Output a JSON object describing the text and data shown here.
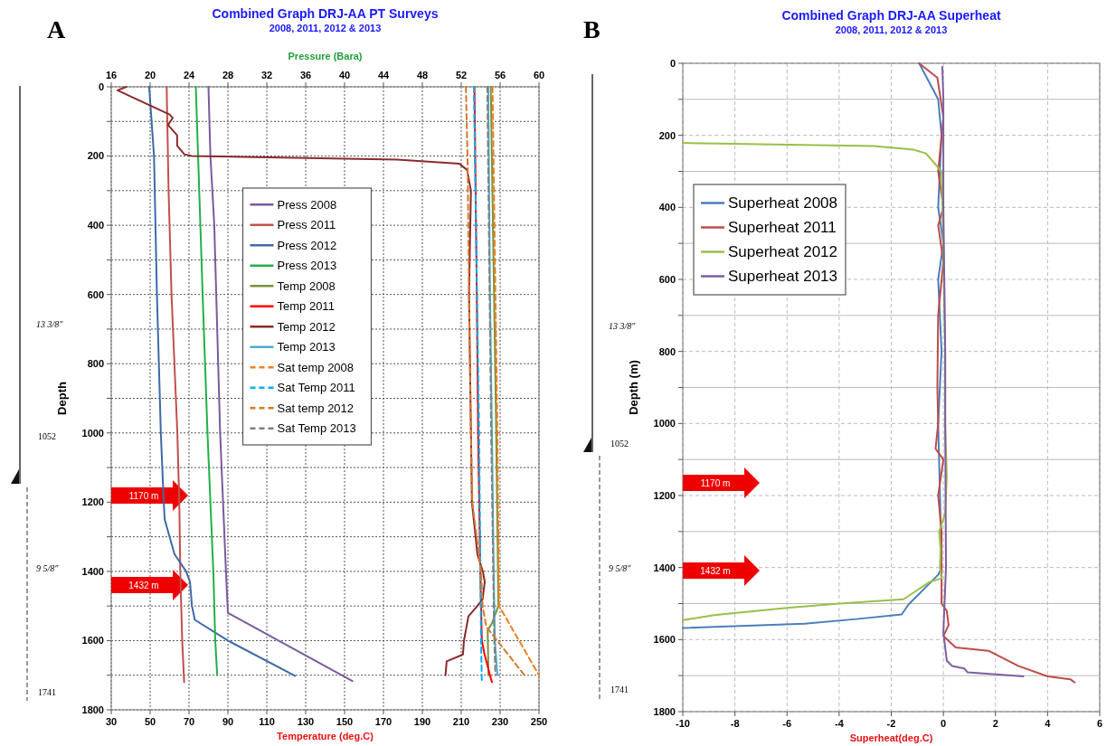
{
  "chart_data": [
    {
      "type": "line",
      "title": "Combined Graph DRJ-AA PT Surveys",
      "subtitle": "2008, 2011, 2012 & 2013",
      "xlabel": "Temperature (deg.C)",
      "x2label": "Pressure (Bara)",
      "ylabel": "Depth",
      "xlim": [
        30,
        250
      ],
      "xticks": [
        30,
        50,
        70,
        90,
        110,
        130,
        150,
        170,
        190,
        210,
        230,
        250
      ],
      "x2lim": [
        16,
        60
      ],
      "x2ticks": [
        16,
        20,
        24,
        28,
        32,
        36,
        40,
        44,
        48,
        52,
        56,
        60
      ],
      "ylim": [
        1800,
        0
      ],
      "yticks": [
        0,
        {
          "value": 100,
          "label": null
        },
        200,
        {
          "value": 300,
          "label": null
        },
        400,
        {
          "value": 500,
          "label": null
        },
        600,
        {
          "value": 700,
          "label": null
        },
        800,
        {
          "value": 900,
          "label": null
        },
        1000,
        {
          "value": 1100,
          "label": null
        },
        1200,
        {
          "value": 1300,
          "label": null
        },
        1400,
        {
          "value": 1500,
          "label": null
        },
        1600,
        {
          "value": 1700,
          "label": null
        },
        1800
      ],
      "grid": true,
      "legend": "top",
      "line_style": "solid",
      "annotations": [
        "A",
        "13 3/8\"",
        "1052",
        "9 5/8\"",
        "1741",
        "1170 m",
        "1432 m"
      ],
      "series": [
        {
          "name": "Press 2008",
          "color": "#7a5a9e",
          "axis": "x2",
          "x": [
            26.0,
            26.2,
            26.6,
            26.8,
            27.0,
            27.2,
            27.5,
            27.8,
            28.0,
            40.8
          ],
          "values": [
            0,
            200,
            400,
            600,
            800,
            1000,
            1200,
            1400,
            1520,
            1717
          ]
        },
        {
          "name": "Press 2011",
          "color": "#c0504d",
          "axis": "x2",
          "x": [
            21.7,
            21.9,
            22.2,
            22.5,
            22.8,
            23.0,
            23.1,
            23.3,
            23.5
          ],
          "values": [
            0,
            300,
            600,
            800,
            1000,
            1200,
            1400,
            1600,
            1720
          ]
        },
        {
          "name": "Press 2012",
          "color": "#3e6aa8",
          "axis": "x2",
          "x": [
            19.9,
            20.4,
            20.7,
            21.1,
            21.4,
            21.5,
            22.5,
            23.7,
            24.1,
            24.3,
            24.6,
            28.0,
            34.9
          ],
          "values": [
            0,
            200,
            600,
            1000,
            1200,
            1250,
            1350,
            1400,
            1430,
            1500,
            1540,
            1600,
            1702
          ]
        },
        {
          "name": "Press 2013",
          "color": "#22b04a",
          "axis": "x2",
          "x": [
            24.7,
            25.4,
            25.9,
            26.2,
            26.5,
            26.7,
            26.9
          ],
          "values": [
            0,
            600,
            1000,
            1200,
            1400,
            1600,
            1700
          ]
        },
        {
          "name": "Temp 2008",
          "color": "#77933c",
          "x": [
            225.2,
            228.0,
            229.1,
            225.8,
            223.6,
            224.0
          ],
          "values": [
            0,
            1000,
            1500,
            1550,
            1570,
            1700
          ]
        },
        {
          "name": "Temp 2011",
          "color": "#ff0000",
          "x": [
            216.8,
            218.0,
            218.7,
            219.8,
            220.6,
            222.0,
            224.8,
            225.8
          ],
          "values": [
            0,
            600,
            1000,
            1400,
            1600,
            1640,
            1700,
            1720
          ]
        },
        {
          "name": "Temp 2012",
          "color": "#8b2a2a",
          "x": [
            37.8,
            33.2,
            60.0,
            61.6,
            59.2,
            63.9,
            63.9,
            67.6,
            71.3,
            177,
            209,
            213,
            215,
            214.0,
            215.0,
            215.5,
            218.3,
            221.1,
            222.1,
            221.0,
            218.3,
            213.7,
            211.4,
            210.9,
            202.5,
            201.9
          ],
          "values": [
            0,
            10,
            80,
            90,
            110,
            140,
            170,
            195,
            200,
            210,
            222,
            240,
            300,
            600,
            1000,
            1200,
            1350,
            1400,
            1430,
            1480,
            1500,
            1530,
            1600,
            1640,
            1660,
            1700
          ]
        },
        {
          "name": "Temp 2013",
          "color": "#4bacc6",
          "x": [
            223.9,
            224.8,
            225.8,
            226.7,
            227.3,
            228.6
          ],
          "values": [
            0,
            600,
            1000,
            1400,
            1600,
            1700
          ]
        },
        {
          "name": "Sat temp 2008",
          "color": "#f07f1f",
          "line_style": "dashed",
          "x": [
            226.1,
            228.6,
            229.5,
            250
          ],
          "values": [
            0,
            1000,
            1500,
            1700
          ]
        },
        {
          "name": "Sat Temp 2011",
          "color": "#00b0f0",
          "line_style": "dashed",
          "x": [
            216.5,
            219.2,
            220.2,
            220.6
          ],
          "values": [
            0,
            1000,
            1600,
            1720
          ]
        },
        {
          "name": "Sat temp 2012",
          "color": "#d27a2e",
          "line_style": "dashed",
          "x": [
            212.4,
            213.3,
            214.0,
            215.0,
            215.7,
            220.2,
            221.0,
            222.9,
            242.5
          ],
          "values": [
            0,
            220,
            600,
            1000,
            1200,
            1400,
            1500,
            1560,
            1700
          ]
        },
        {
          "name": "Sat Temp 2013",
          "color": "#808080",
          "line_style": "dashed",
          "x": [
            223.4,
            225.4,
            227.0,
            227.6
          ],
          "values": [
            0,
            1000,
            1600,
            1700
          ]
        }
      ]
    },
    {
      "type": "line",
      "title": "Combined Graph DRJ-AA Superheat",
      "subtitle": "2008, 2011, 2012 & 2013",
      "xlabel": "Superheat(deg.C)",
      "ylabel": "Depth (m)",
      "xlim": [
        -10,
        6
      ],
      "xticks": [
        -10,
        -8,
        -6,
        -4,
        -2,
        0,
        2,
        4,
        6
      ],
      "ylim": [
        1800,
        0
      ],
      "yticks": [
        0,
        {
          "value": 100,
          "label": null
        },
        200,
        {
          "value": 300,
          "label": null
        },
        400,
        {
          "value": 500,
          "label": null
        },
        600,
        {
          "value": 700,
          "label": null
        },
        800,
        {
          "value": 900,
          "label": null
        },
        1000,
        {
          "value": 1100,
          "label": null
        },
        1200,
        {
          "value": 1300,
          "label": null
        },
        1400,
        {
          "value": 1500,
          "label": null
        },
        1600,
        {
          "value": 1700,
          "label": null
        },
        1800
      ],
      "grid": true,
      "legend": "top left",
      "line_style": "solid",
      "annotations": [
        "B",
        "13 3/8\"",
        "1052",
        "9 5/8\"",
        "1741",
        "1170 m",
        "1432 m"
      ],
      "series": [
        {
          "name": "Superheat 2008",
          "color": "#4a7ebb",
          "x": [
            -0.93,
            -0.2,
            -0.07,
            -0.2,
            0,
            -0.2,
            -0.07,
            -0.2,
            -0.13,
            -0.07,
            -0.2,
            -1.33,
            -1.6,
            -3.33,
            -5.33,
            -10
          ],
          "values": [
            0,
            100,
            200,
            400,
            500,
            600,
            800,
            1000,
            1200,
            1400,
            1420,
            1502,
            1530,
            1543,
            1556,
            1568
          ]
        },
        {
          "name": "Superheat 2011",
          "color": "#be4b48",
          "x": [
            -0.93,
            -0.23,
            0,
            -0.2,
            0,
            -0.2,
            0,
            -0.2,
            -0.23,
            -0.2,
            -0.3,
            0,
            -0.2,
            -0.07,
            -0.07,
            0.13,
            0.2,
            0,
            0.47,
            1.73,
            2.87,
            4.0,
            4.87,
            5.04
          ],
          "values": [
            0,
            40,
            150,
            300,
            400,
            450,
            550,
            700,
            900,
            1000,
            1070,
            1100,
            1200,
            1300,
            1500,
            1520,
            1560,
            1590,
            1622,
            1631,
            1673,
            1702,
            1710,
            1719
          ]
        },
        {
          "name": "Superheat 2012",
          "color": "#98c04a",
          "x": [
            -10,
            -2.67,
            -1.13,
            -0.67,
            -0.07,
            0,
            0.07,
            0.07,
            0.13,
            0.07,
            -0.16,
            -0.11,
            -0.13,
            -0.07,
            -0.53,
            -1.53,
            -4,
            -6,
            -8.8,
            -10
          ],
          "values": [
            221,
            230,
            240,
            250,
            300,
            500,
            800,
            1000,
            1150,
            1250,
            1300,
            1350,
            1400,
            1430,
            1440,
            1488,
            1500,
            1512,
            1532,
            1546
          ]
        },
        {
          "name": "Superheat 2013",
          "color": "#7d5fa0",
          "x": [
            -0.04,
            0,
            0,
            0.07,
            0.07,
            0.1,
            0,
            0.13,
            0.33,
            0.8,
            0.93,
            3.07
          ],
          "values": [
            10,
            100,
            400,
            800,
            1000,
            1400,
            1580,
            1658,
            1673,
            1680,
            1691,
            1702
          ]
        }
      ]
    }
  ]
}
